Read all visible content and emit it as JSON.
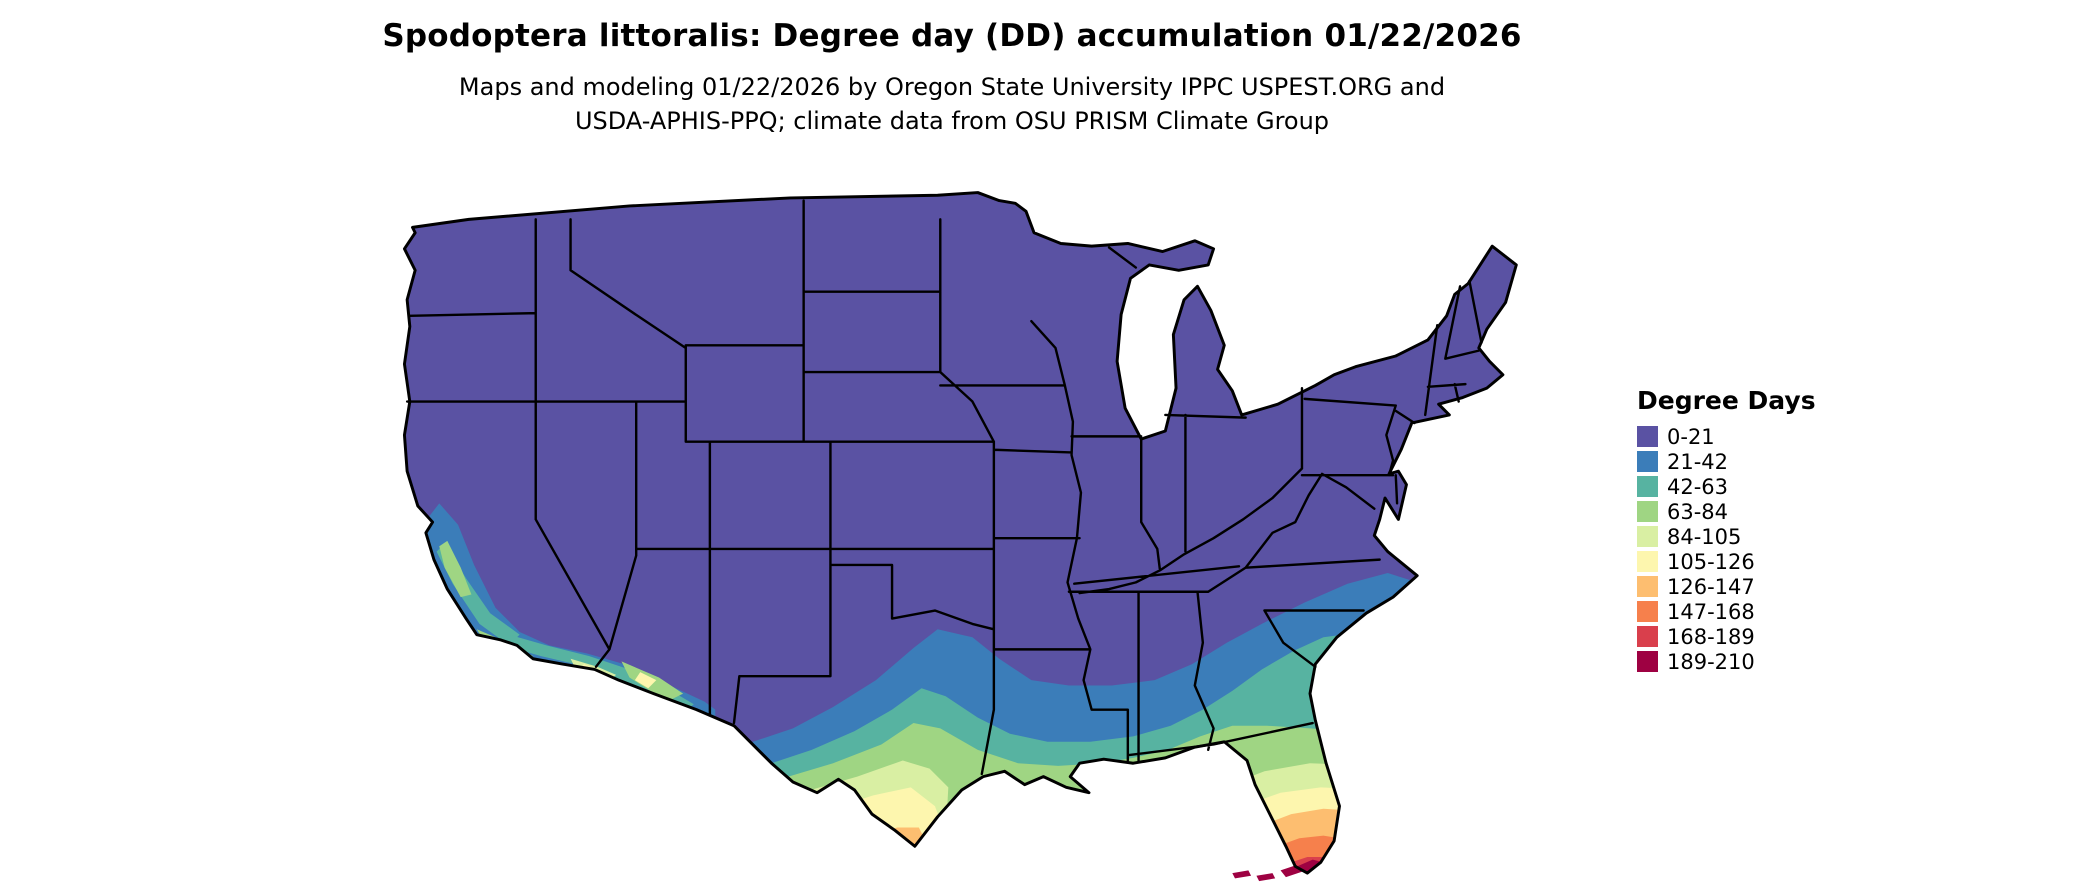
{
  "header": {
    "title": "Spodoptera littoralis: Degree day (DD) accumulation 01/22/2026",
    "subtitle_line1": "Maps and modeling 01/22/2026 by Oregon State University IPPC USPEST.ORG and",
    "subtitle_line2": "USDA-APHIS-PPQ; climate data from OSU PRISM Climate Group"
  },
  "legend": {
    "title": "Degree Days",
    "bins": [
      {
        "label": "0-21",
        "color": "#5A52A3"
      },
      {
        "label": "21-42",
        "color": "#3B7DB9"
      },
      {
        "label": "42-63",
        "color": "#57B3A1"
      },
      {
        "label": "63-84",
        "color": "#9FD583"
      },
      {
        "label": "84-105",
        "color": "#D9EFA3"
      },
      {
        "label": "105-126",
        "color": "#FDF6AE"
      },
      {
        "label": "126-147",
        "color": "#FDBE70"
      },
      {
        "label": "147-168",
        "color": "#F6804C"
      },
      {
        "label": "168-189",
        "color": "#D93F4C"
      },
      {
        "label": "189-210",
        "color": "#9E0142"
      }
    ]
  },
  "map": {
    "depicts": "Continental United States degree-day accumulation choropleth",
    "state_border_color": "#000000",
    "background_color": "#FFFFFF"
  }
}
